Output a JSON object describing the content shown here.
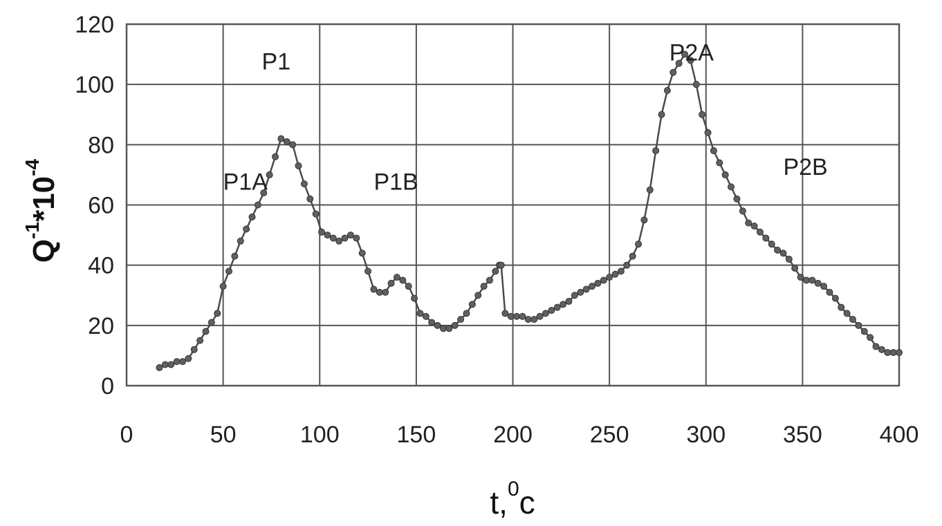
{
  "chart_data": {
    "type": "scatter",
    "title": "",
    "xlabel_base": "t,",
    "xlabel_sup": "0",
    "xlabel_tail": "c",
    "ylabel_base": "Q",
    "ylabel_sup1": "-1",
    "ylabel_mid": "*10",
    "ylabel_sup2": "-4",
    "xlim": [
      0,
      400
    ],
    "ylim": [
      0,
      120
    ],
    "x_ticks": [
      0,
      50,
      100,
      150,
      200,
      250,
      300,
      350,
      400
    ],
    "y_ticks": [
      0,
      20,
      40,
      60,
      80,
      100,
      120
    ],
    "grid": true,
    "annotations": [
      {
        "text": "P1",
        "x": 70,
        "y": 105
      },
      {
        "text": "P1A",
        "x": 50,
        "y": 65
      },
      {
        "text": "P1B",
        "x": 128,
        "y": 65
      },
      {
        "text": "P2A",
        "x": 281,
        "y": 108
      },
      {
        "text": "P2B",
        "x": 340,
        "y": 70
      }
    ],
    "series": [
      {
        "x": [
          17,
          20,
          23,
          26,
          29,
          32,
          35,
          38,
          41,
          44,
          47,
          50,
          53,
          56,
          59,
          62,
          65,
          68,
          71,
          74,
          77,
          80,
          83,
          86,
          89,
          92,
          95,
          98,
          101,
          104,
          107,
          110,
          113,
          116,
          119,
          122,
          125,
          128,
          131,
          134,
          137,
          140,
          143,
          146,
          149,
          152,
          155,
          158,
          161,
          164,
          167,
          170,
          173,
          176,
          179,
          182,
          185,
          188,
          191,
          193,
          194,
          196,
          199,
          202,
          205,
          208,
          211,
          214,
          217,
          220,
          223,
          226,
          229,
          232,
          235,
          238,
          241,
          244,
          247,
          250,
          253,
          256,
          259,
          262,
          265,
          268,
          271,
          274,
          277,
          280,
          283,
          286,
          289,
          292,
          295,
          298,
          301,
          304,
          307,
          310,
          313,
          316,
          319,
          322,
          325,
          328,
          331,
          334,
          337,
          340,
          343,
          346,
          349,
          352,
          355,
          358,
          361,
          364,
          367,
          370,
          373,
          376,
          379,
          382,
          385,
          388,
          391,
          394,
          397,
          400
        ],
        "y": [
          6,
          7,
          7,
          8,
          8,
          9,
          12,
          15,
          18,
          21,
          24,
          33,
          38,
          43,
          48,
          52,
          56,
          60,
          64,
          70,
          76,
          82,
          81,
          80,
          73,
          67,
          62,
          57,
          51,
          50,
          49,
          48,
          49,
          50,
          49,
          44,
          38,
          32,
          31,
          31,
          34,
          36,
          35,
          33,
          29,
          24,
          23,
          21,
          20,
          19,
          19,
          20,
          22,
          24,
          27,
          30,
          33,
          35,
          38,
          40,
          40,
          24,
          23,
          23,
          23,
          22,
          22,
          23,
          24,
          25,
          26,
          27,
          28,
          30,
          31,
          32,
          33,
          34,
          35,
          36,
          37,
          38,
          40,
          43,
          47,
          55,
          65,
          78,
          90,
          98,
          104,
          107,
          110,
          108,
          100,
          90,
          84,
          78,
          74,
          70,
          66,
          62,
          58,
          54,
          53,
          51,
          49,
          47,
          45,
          44,
          42,
          39,
          36,
          35,
          35,
          34,
          33,
          31,
          29,
          26,
          24,
          22,
          20,
          18,
          16,
          13,
          12,
          11,
          11,
          11
        ]
      }
    ]
  }
}
